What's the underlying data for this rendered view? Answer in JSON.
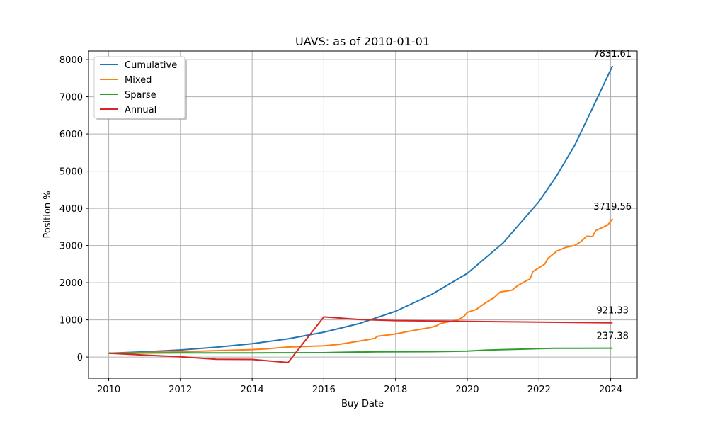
{
  "chart_data": {
    "type": "line",
    "title": "UAVS: as of 2010-01-01",
    "xlabel": "Buy Date",
    "ylabel": "Position %",
    "xlim": [
      "2009-06-09",
      "2024-09-27"
    ],
    "ylim": [
      -570,
      8230
    ],
    "x_ticks": [
      "2010",
      "2012",
      "2014",
      "2016",
      "2018",
      "2020",
      "2022",
      "2024"
    ],
    "y_ticks": [
      0,
      1000,
      2000,
      3000,
      4000,
      5000,
      6000,
      7000,
      8000
    ],
    "grid": true,
    "legend_position": "top-left",
    "series": [
      {
        "name": "Cumulative",
        "color": "#1f77b4",
        "end_label": "7831.61",
        "points": [
          [
            "2010-01-01",
            100
          ],
          [
            "2011-01-01",
            138
          ],
          [
            "2012-01-01",
            190
          ],
          [
            "2013-01-01",
            262
          ],
          [
            "2014-01-01",
            358
          ],
          [
            "2015-01-01",
            490
          ],
          [
            "2016-01-01",
            668
          ],
          [
            "2017-01-01",
            905
          ],
          [
            "2018-01-01",
            1230
          ],
          [
            "2019-01-01",
            1680
          ],
          [
            "2020-01-01",
            2250
          ],
          [
            "2021-01-01",
            3070
          ],
          [
            "2022-01-01",
            4180
          ],
          [
            "2022-07-01",
            4880
          ],
          [
            "2023-01-01",
            5700
          ],
          [
            "2023-07-01",
            6700
          ],
          [
            "2024-01-20",
            7831.61
          ]
        ]
      },
      {
        "name": "Mixed",
        "color": "#ff7f0e",
        "end_label": "3719.56",
        "points": [
          [
            "2010-01-01",
            100
          ],
          [
            "2011-01-01",
            118
          ],
          [
            "2012-01-01",
            140
          ],
          [
            "2013-01-01",
            170
          ],
          [
            "2014-01-01",
            200
          ],
          [
            "2014-06-01",
            220
          ],
          [
            "2015-01-01",
            268
          ],
          [
            "2016-01-01",
            300
          ],
          [
            "2016-06-01",
            340
          ],
          [
            "2017-01-01",
            430
          ],
          [
            "2017-06-01",
            500
          ],
          [
            "2017-07-01",
            560
          ],
          [
            "2018-01-01",
            620
          ],
          [
            "2018-06-01",
            700
          ],
          [
            "2019-01-01",
            800
          ],
          [
            "2019-03-01",
            850
          ],
          [
            "2019-04-01",
            900
          ],
          [
            "2019-10-01",
            1000
          ],
          [
            "2019-12-01",
            1100
          ],
          [
            "2020-01-01",
            1200
          ],
          [
            "2020-04-01",
            1280
          ],
          [
            "2020-07-01",
            1450
          ],
          [
            "2020-10-01",
            1600
          ],
          [
            "2020-12-01",
            1750
          ],
          [
            "2021-04-01",
            1800
          ],
          [
            "2021-06-01",
            1930
          ],
          [
            "2021-10-01",
            2100
          ],
          [
            "2021-11-01",
            2300
          ],
          [
            "2022-03-01",
            2500
          ],
          [
            "2022-04-01",
            2650
          ],
          [
            "2022-07-01",
            2850
          ],
          [
            "2022-10-01",
            2950
          ],
          [
            "2023-01-01",
            3000
          ],
          [
            "2023-03-01",
            3100
          ],
          [
            "2023-05-01",
            3250
          ],
          [
            "2023-07-01",
            3240
          ],
          [
            "2023-08-01",
            3400
          ],
          [
            "2023-12-01",
            3550
          ],
          [
            "2024-01-20",
            3719.56
          ]
        ]
      },
      {
        "name": "Sparse",
        "color": "#2ca02c",
        "end_label": "237.38",
        "points": [
          [
            "2010-01-01",
            100
          ],
          [
            "2012-01-01",
            110
          ],
          [
            "2014-01-01",
            112
          ],
          [
            "2016-01-01",
            115
          ],
          [
            "2016-06-01",
            125
          ],
          [
            "2017-07-01",
            140
          ],
          [
            "2019-01-01",
            145
          ],
          [
            "2020-01-01",
            160
          ],
          [
            "2020-07-01",
            185
          ],
          [
            "2021-01-01",
            200
          ],
          [
            "2021-06-01",
            210
          ],
          [
            "2022-01-01",
            225
          ],
          [
            "2022-06-01",
            235
          ],
          [
            "2023-01-01",
            236
          ],
          [
            "2024-01-20",
            237.38
          ]
        ]
      },
      {
        "name": "Annual",
        "color": "#d62728",
        "end_label": "921.33",
        "points": [
          [
            "2010-01-01",
            100
          ],
          [
            "2011-01-01",
            50
          ],
          [
            "2012-01-01",
            5
          ],
          [
            "2013-01-01",
            -60
          ],
          [
            "2014-01-01",
            -65
          ],
          [
            "2015-01-01",
            -150
          ],
          [
            "2016-01-01",
            1080
          ],
          [
            "2017-01-01",
            1010
          ],
          [
            "2018-01-01",
            980
          ],
          [
            "2019-01-01",
            970
          ],
          [
            "2020-01-01",
            960
          ],
          [
            "2021-01-01",
            950
          ],
          [
            "2022-01-01",
            940
          ],
          [
            "2023-01-01",
            930
          ],
          [
            "2024-01-20",
            921.33
          ]
        ]
      }
    ]
  }
}
